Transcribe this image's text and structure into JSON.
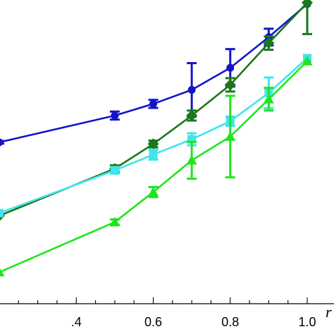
{
  "chart_data": {
    "type": "line",
    "title": "",
    "xlabel": "r",
    "ylabel": "",
    "xlim": [
      0.2,
      1.0
    ],
    "ylim": [
      0,
      1
    ],
    "grid": false,
    "legend": "none",
    "x_ticks": [
      {
        "value": 0.4,
        "label": ".4"
      },
      {
        "value": 0.6,
        "label": "0.6"
      },
      {
        "value": 0.8,
        "label": "0.8"
      },
      {
        "value": 1.0,
        "label": "1.0"
      }
    ],
    "x_minor_step": 0.05,
    "series": [
      {
        "color": "#1414c8",
        "marker": "circle",
        "x": [
          0.2,
          0.5,
          0.6,
          0.7,
          0.8,
          0.9,
          1.0
        ],
        "y": [
          0.574,
          0.654,
          0.689,
          0.731,
          0.797,
          0.889,
          0.988
        ],
        "err": [
          0.004,
          0.012,
          0.012,
          0.08,
          0.056,
          0.025,
          0.0
        ]
      },
      {
        "color": "#1a781a",
        "marker": "diamond",
        "x": [
          0.2,
          0.5,
          0.6,
          0.7,
          0.8,
          0.9,
          1.0
        ],
        "y": [
          0.354,
          0.495,
          0.569,
          0.654,
          0.746,
          0.871,
          0.992
        ],
        "err": [
          0.0,
          0.01,
          0.01,
          0.015,
          0.02,
          0.02,
          0.094
        ]
      },
      {
        "color": "#40e4ea",
        "marker": "square",
        "x": [
          0.2,
          0.5,
          0.6,
          0.7,
          0.8,
          0.9,
          1.0
        ],
        "y": [
          0.362,
          0.49,
          0.537,
          0.583,
          0.637,
          0.722,
          0.826
        ],
        "err": [
          0.0,
          0.01,
          0.015,
          0.018,
          0.014,
          0.046,
          0.0
        ]
      },
      {
        "color": "#1ee61e",
        "marker": "triangle",
        "x": [
          0.2,
          0.5,
          0.6,
          0.7,
          0.8,
          0.9,
          1.0
        ],
        "y": [
          0.185,
          0.335,
          0.425,
          0.52,
          0.591,
          0.703,
          0.817
        ],
        "err": [
          0.0,
          0.008,
          0.015,
          0.055,
          0.122,
          0.034,
          0.0
        ]
      }
    ]
  }
}
